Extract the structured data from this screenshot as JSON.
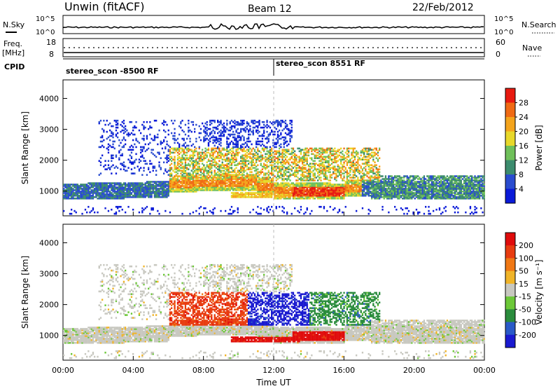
{
  "header": {
    "site": "Unwin (fitACF)",
    "beam": "Beam 12",
    "date": "22/Feb/2012"
  },
  "panels": {
    "nsky_label": "N.Sky",
    "nsearch_label": "N.Search",
    "freq_label_1": "Freq.",
    "freq_label_2": "[MHz]",
    "nave_label": "Nave",
    "cpid_label": "CPID",
    "cpid_segments": [
      "stereo_scon -8500 RF",
      "stereo_scon 8551 RF"
    ],
    "noise_ticks": [
      "10^5",
      "10^0"
    ],
    "freq_ticks": [
      "18",
      "8"
    ],
    "nave_ticks": [
      "60",
      "0"
    ]
  },
  "chart_data": [
    {
      "type": "heatmap",
      "title": "Power",
      "xlabel": "Time UT",
      "ylabel": "Slant Range [km]",
      "x_ticks": [
        "00:00",
        "04:00",
        "08:00",
        "12:00",
        "16:00",
        "20:00",
        "00:00"
      ],
      "y_ticks": [
        1000,
        2000,
        3000,
        4000
      ],
      "ylim": [
        200,
        4600
      ],
      "colorbar_label": "Power [dB]",
      "colorbar_ticks": [
        4,
        8,
        12,
        16,
        20,
        24,
        28
      ],
      "colorbar_colors": [
        "#0a1ad8",
        "#2a4ccf",
        "#3c8c6e",
        "#6fc05a",
        "#e8d82a",
        "#f4a41c",
        "#f06a14",
        "#e81a10"
      ]
    },
    {
      "type": "heatmap",
      "title": "Velocity",
      "xlabel": "Time UT",
      "ylabel": "Slant Range [km]",
      "x_ticks": [
        "00:00",
        "04:00",
        "08:00",
        "12:00",
        "16:00",
        "20:00",
        "00:00"
      ],
      "y_ticks": [
        1000,
        2000,
        3000,
        4000
      ],
      "ylim": [
        200,
        4600
      ],
      "colorbar_label": "Velocity [m s⁻¹]",
      "colorbar_ticks": [
        200,
        100,
        50,
        15,
        -15,
        -50,
        -100,
        -200
      ],
      "colorbar_colors": [
        "#1a1ad0",
        "#2a5ac8",
        "#2a8c3c",
        "#6cc838",
        "#c8c8c0",
        "#f0b428",
        "#f07814",
        "#e83c10",
        "#e00c0c"
      ]
    }
  ]
}
